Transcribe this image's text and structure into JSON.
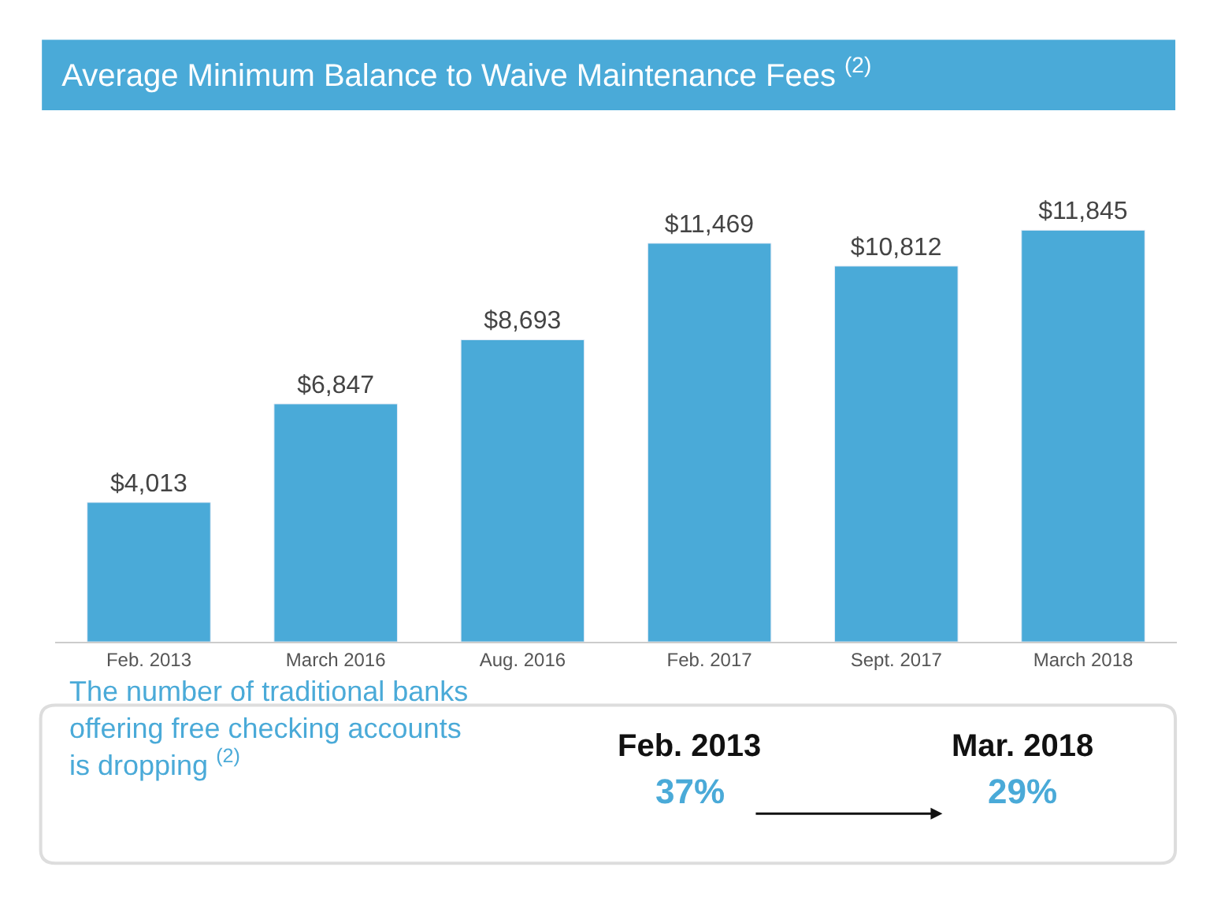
{
  "chart_data": {
    "type": "bar",
    "title": "Average Minimum Balance to Waive Maintenance Fees $^{(2)}$",
    "categories": [
      "Feb. 2013",
      "March 2016",
      "Aug. 2016",
      "Feb. 2017",
      "Sept. 2017",
      "March 2018"
    ],
    "values": [
      4013,
      6847,
      8693,
      11469,
      10812,
      11845
    ],
    "value_labels": [
      "$4,013",
      "$6,847",
      "$8,693",
      "$11,469",
      "$10,812",
      "$11,845"
    ],
    "color": "#4aaad8",
    "annotations": [
      "The number of traditional banks offering free checking accounts is dropping $^{(2)}$",
      "Feb. 2013",
      "37%",
      "Mar. 2018",
      "29%"
    ]
  }
}
